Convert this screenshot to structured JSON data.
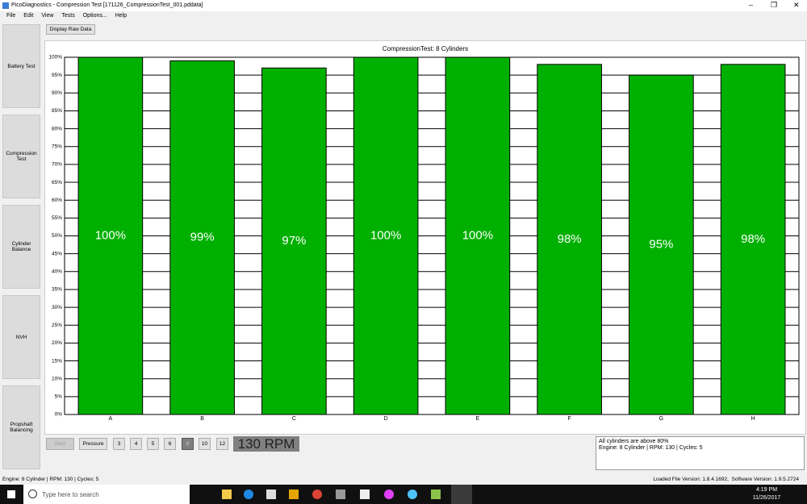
{
  "window": {
    "title": "PicoDiagnostics - Compression Test [171126_CompressionTest_001.pddata]"
  },
  "menu": [
    "File",
    "Edit",
    "View",
    "Tests",
    "Options...",
    "Help"
  ],
  "sidebar": [
    "Battery Test",
    "Compression Test",
    "Cylinder Balance",
    "NVH",
    "Propshaft Balancing"
  ],
  "toolbar": {
    "button": "Display Raw Data"
  },
  "chart_data": {
    "type": "bar",
    "title": "CompressionTest: 8 Cylinders",
    "categories": [
      "A",
      "B",
      "C",
      "D",
      "E",
      "F",
      "G",
      "H"
    ],
    "values": [
      100,
      99,
      97,
      100,
      100,
      98,
      95,
      98
    ],
    "value_labels": [
      "100%",
      "99%",
      "97%",
      "100%",
      "100%",
      "98%",
      "95%",
      "98%"
    ],
    "color": "#00b000",
    "ylim": [
      0,
      100
    ],
    "yticks": [
      {
        "value": 0,
        "label": "0%"
      },
      {
        "value": 5,
        "label": "5%"
      },
      {
        "value": 10,
        "label": "10%"
      },
      {
        "value": 15,
        "label": "15%"
      },
      {
        "value": 20,
        "label": "20%"
      },
      {
        "value": 25,
        "label": "25%"
      },
      {
        "value": 30,
        "label": "30%"
      },
      {
        "value": 35,
        "label": "35%"
      },
      {
        "value": 40,
        "label": "40%"
      },
      {
        "value": 45,
        "label": "45%"
      },
      {
        "value": 50,
        "label": "50%"
      },
      {
        "value": 55,
        "label": "55%"
      },
      {
        "value": 60,
        "label": "60%"
      },
      {
        "value": 65,
        "label": "65%"
      },
      {
        "value": 70,
        "label": "70%"
      },
      {
        "value": 75,
        "label": "75%"
      },
      {
        "value": 80,
        "label": "80%"
      },
      {
        "value": 85,
        "label": "85%"
      },
      {
        "value": 90,
        "label": "90%"
      },
      {
        "value": 95,
        "label": "95%"
      },
      {
        "value": 100,
        "label": "100%"
      }
    ],
    "grid": true
  },
  "controls": {
    "start": "Start",
    "pressure": "Pressure",
    "cylinders": [
      "3",
      "4",
      "5",
      "6",
      "8",
      "10",
      "12"
    ],
    "selected_index": 4,
    "rpm_display": "130 RPM"
  },
  "messages": [
    "All cylinders are above 80%",
    "Engine: 8 Cylinder | RPM: 130 | Cycles: 5"
  ],
  "status": {
    "left": "Engine: 8 Cylinder | RPM: 130 | Cycles: 5",
    "right": "Loaded File Version: 1.8.4.1692,  Software Version: 1.9.5.2724"
  },
  "taskbar": {
    "search": "Type here to search",
    "time": "4:19 PM",
    "date": "11/26/2017"
  }
}
